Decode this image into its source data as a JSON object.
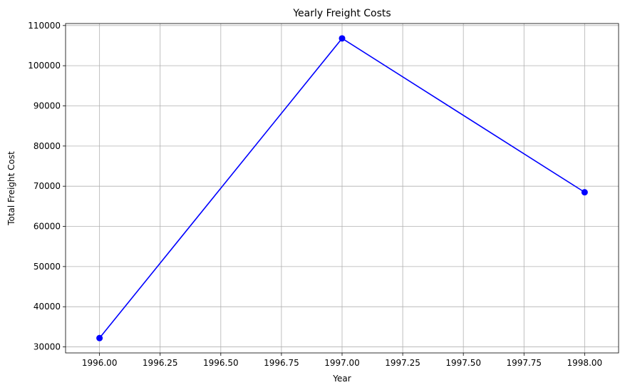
{
  "chart_data": {
    "type": "line",
    "title": "Yearly Freight Costs",
    "xlabel": "Year",
    "ylabel": "Total Freight Cost",
    "x": [
      1996,
      1997,
      1998
    ],
    "series": [
      {
        "values": [
          32200,
          106800,
          68500
        ],
        "color": "#0000ff",
        "marker": "circle"
      }
    ],
    "xlim": [
      1995.86,
      1998.14
    ],
    "ylim": [
      28500,
      110500
    ],
    "xticks": [
      1996.0,
      1996.25,
      1996.5,
      1996.75,
      1997.0,
      1997.25,
      1997.5,
      1997.75,
      1998.0
    ],
    "xtick_labels": [
      "1996.00",
      "1996.25",
      "1996.50",
      "1996.75",
      "1997.00",
      "1997.25",
      "1997.50",
      "1997.75",
      "1998.00"
    ],
    "yticks": [
      30000,
      40000,
      50000,
      60000,
      70000,
      80000,
      90000,
      100000,
      110000
    ],
    "ytick_labels": [
      "30000",
      "40000",
      "50000",
      "60000",
      "70000",
      "80000",
      "90000",
      "100000",
      "110000"
    ],
    "grid": true,
    "legend": false
  }
}
